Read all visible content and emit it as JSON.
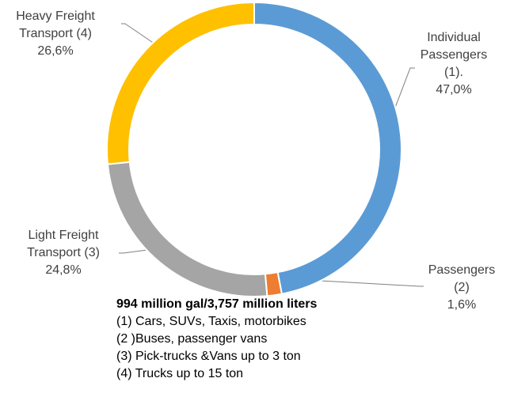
{
  "chart_data": {
    "type": "donut",
    "subtitle": "994 million gal/3,757 million liters",
    "notes": [
      "(1) Cars, SUVs, Taxis, motorbikes",
      "(2 )Buses, passenger vans",
      "(3) Pick-trucks &Vans up to 3 ton",
      "(4) Trucks up to 15 ton"
    ],
    "categories": [
      "Individual Passengers (1).",
      "Passengers (2)",
      "Light Freight Transport (3)",
      "Heavy Freight Transport (4)"
    ],
    "values": [
      47.0,
      1.6,
      24.8,
      26.6
    ],
    "value_labels": [
      "47,0%",
      "1,6%",
      "24,8%",
      "26,6%"
    ],
    "colors": [
      "#5b9bd5",
      "#ed7d31",
      "#a5a5a5",
      "#ffc000"
    ]
  }
}
